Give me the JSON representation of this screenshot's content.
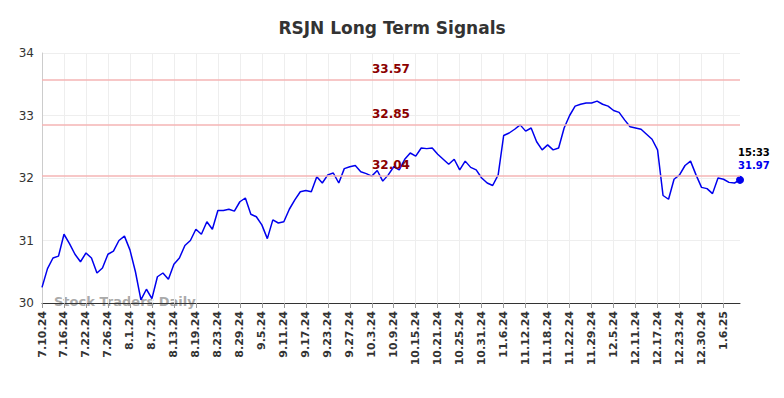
{
  "chart_data": {
    "type": "line",
    "title": "RSJN Long Term Signals",
    "color": "#0000ee",
    "categories": [
      "7.10.24",
      null,
      null,
      null,
      "7.16.24",
      null,
      null,
      null,
      "7.22.24",
      null,
      null,
      null,
      "7.26.24",
      null,
      null,
      null,
      "8.1.24",
      null,
      null,
      null,
      "8.7.24",
      null,
      null,
      null,
      "8.13.24",
      null,
      null,
      null,
      "8.19.24",
      null,
      null,
      null,
      "8.23.24",
      null,
      null,
      null,
      "8.29.24",
      null,
      null,
      null,
      "9.5.24",
      null,
      null,
      null,
      "9.11.24",
      null,
      null,
      null,
      "9.17.24",
      null,
      null,
      null,
      "9.23.24",
      null,
      null,
      null,
      "9.27.24",
      null,
      null,
      null,
      "10.3.24",
      null,
      null,
      null,
      "10.9.24",
      null,
      null,
      null,
      "10.15.24",
      null,
      null,
      null,
      "10.21.24",
      null,
      null,
      null,
      "10.25.24",
      null,
      null,
      null,
      "10.31.24",
      null,
      null,
      null,
      "11.6.24",
      null,
      null,
      null,
      "11.12.24",
      null,
      null,
      null,
      "11.18.24",
      null,
      null,
      null,
      "11.22.24",
      null,
      null,
      null,
      "11.29.24",
      null,
      null,
      null,
      "12.5.24",
      null,
      null,
      null,
      "12.11.24",
      null,
      null,
      null,
      "12.17.24",
      null,
      null,
      null,
      "12.23.24",
      null,
      null,
      null,
      "12.30.24",
      null,
      null,
      null,
      "1.6.25",
      null,
      null,
      null
    ],
    "values": [
      30.25,
      30.55,
      30.72,
      30.75,
      31.1,
      30.95,
      30.78,
      30.66,
      30.8,
      30.72,
      30.48,
      30.56,
      30.78,
      30.83,
      31.0,
      31.07,
      30.85,
      30.5,
      30.05,
      30.22,
      30.07,
      30.42,
      30.48,
      30.38,
      30.62,
      30.72,
      30.92,
      31.0,
      31.18,
      31.1,
      31.3,
      31.18,
      31.48,
      31.48,
      31.5,
      31.47,
      31.62,
      31.68,
      31.42,
      31.38,
      31.25,
      31.03,
      31.33,
      31.28,
      31.3,
      31.5,
      31.65,
      31.78,
      31.8,
      31.78,
      32.02,
      31.92,
      32.05,
      32.08,
      31.92,
      32.15,
      32.18,
      32.2,
      32.1,
      32.07,
      32.03,
      32.12,
      31.95,
      32.05,
      32.18,
      32.13,
      32.3,
      32.4,
      32.35,
      32.48,
      32.47,
      32.48,
      32.38,
      32.3,
      32.22,
      32.3,
      32.13,
      32.27,
      32.17,
      32.13,
      32.0,
      31.92,
      31.88,
      32.05,
      32.68,
      32.72,
      32.78,
      32.85,
      32.75,
      32.8,
      32.58,
      32.45,
      32.53,
      32.45,
      32.48,
      32.8,
      33.0,
      33.15,
      33.18,
      33.2,
      33.2,
      33.23,
      33.18,
      33.15,
      33.08,
      33.05,
      32.93,
      32.82,
      32.8,
      32.78,
      32.7,
      32.62,
      32.45,
      31.72,
      31.66,
      31.98,
      32.05,
      32.2,
      32.27,
      32.05,
      31.85,
      31.83,
      31.75,
      32.0,
      31.98,
      31.93,
      31.92,
      31.97
    ],
    "ylim": [
      30,
      34
    ],
    "yticks": [
      30,
      31,
      32,
      33,
      34
    ],
    "grid": true,
    "hlines": [
      {
        "value": 33.57,
        "label": "33.57"
      },
      {
        "value": 32.85,
        "label": "32.85"
      },
      {
        "value": 32.04,
        "label": "32.04"
      }
    ],
    "end_label": {
      "time": "15:33",
      "value": 31.97
    },
    "watermark": "Stock Traders Daily"
  }
}
